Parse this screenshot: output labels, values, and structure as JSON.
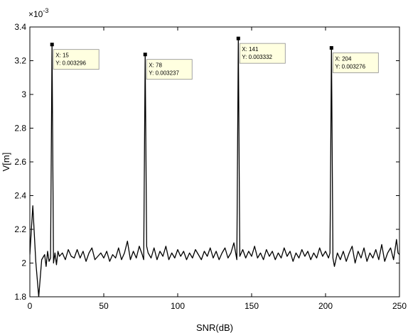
{
  "chart_data": {
    "type": "line",
    "xlabel": "SNR(dB)",
    "ylabel": "V[m]",
    "xlim": [
      0,
      250
    ],
    "ylim": [
      0.0018,
      0.0034
    ],
    "x_ticks": [
      "0",
      "50",
      "100",
      "150",
      "200",
      "250"
    ],
    "y_ticks": [
      "1.8",
      "2",
      "2.2",
      "2.4",
      "2.6",
      "2.8",
      "3",
      "3.2",
      "3.4"
    ],
    "y_multiplier": "×10",
    "y_multiplier_exp": "-3",
    "grid": false,
    "legend": "none",
    "line_color": "#000000",
    "tip_fill": "#ffffe0",
    "series": [
      {
        "points": [
          [
            0,
            0.00205
          ],
          [
            2,
            0.00234
          ],
          [
            4,
            0.00201
          ],
          [
            6,
            0.0018
          ],
          [
            8,
            0.00202
          ],
          [
            10,
            0.00205
          ],
          [
            11,
            0.00198
          ],
          [
            12,
            0.00207
          ],
          [
            13,
            0.00201
          ],
          [
            14,
            0.00203
          ],
          [
            15,
            0.003296
          ],
          [
            16,
            0.002
          ],
          [
            17,
            0.00206
          ],
          [
            18,
            0.00199
          ],
          [
            19,
            0.00207
          ],
          [
            20,
            0.00204
          ],
          [
            22,
            0.00206
          ],
          [
            24,
            0.00202
          ],
          [
            26,
            0.00208
          ],
          [
            28,
            0.00204
          ],
          [
            30,
            0.00203
          ],
          [
            32,
            0.00208
          ],
          [
            34,
            0.00203
          ],
          [
            36,
            0.00207
          ],
          [
            38,
            0.00201
          ],
          [
            40,
            0.00206
          ],
          [
            42,
            0.00209
          ],
          [
            44,
            0.00202
          ],
          [
            46,
            0.00204
          ],
          [
            48,
            0.00206
          ],
          [
            50,
            0.00203
          ],
          [
            52,
            0.00207
          ],
          [
            54,
            0.00201
          ],
          [
            56,
            0.00205
          ],
          [
            58,
            0.00203
          ],
          [
            60,
            0.00209
          ],
          [
            62,
            0.00202
          ],
          [
            64,
            0.00206
          ],
          [
            66,
            0.00213
          ],
          [
            68,
            0.00202
          ],
          [
            70,
            0.00207
          ],
          [
            72,
            0.00203
          ],
          [
            74,
            0.0021
          ],
          [
            76,
            0.00205
          ],
          [
            77,
            0.00202
          ],
          [
            78,
            0.003237
          ],
          [
            79,
            0.0021
          ],
          [
            80,
            0.00206
          ],
          [
            82,
            0.00203
          ],
          [
            84,
            0.00209
          ],
          [
            86,
            0.00202
          ],
          [
            88,
            0.00207
          ],
          [
            90,
            0.00204
          ],
          [
            92,
            0.0021
          ],
          [
            94,
            0.00202
          ],
          [
            96,
            0.00206
          ],
          [
            98,
            0.00203
          ],
          [
            100,
            0.00208
          ],
          [
            102,
            0.00204
          ],
          [
            104,
            0.00207
          ],
          [
            106,
            0.00202
          ],
          [
            108,
            0.00206
          ],
          [
            110,
            0.00203
          ],
          [
            112,
            0.00208
          ],
          [
            114,
            0.00205
          ],
          [
            116,
            0.00202
          ],
          [
            118,
            0.00207
          ],
          [
            120,
            0.00204
          ],
          [
            122,
            0.00209
          ],
          [
            124,
            0.00203
          ],
          [
            126,
            0.00207
          ],
          [
            128,
            0.00202
          ],
          [
            130,
            0.00206
          ],
          [
            132,
            0.00209
          ],
          [
            134,
            0.00203
          ],
          [
            136,
            0.00206
          ],
          [
            138,
            0.00212
          ],
          [
            140,
            0.00202
          ],
          [
            141,
            0.003332
          ],
          [
            142,
            0.00204
          ],
          [
            144,
            0.00208
          ],
          [
            146,
            0.00203
          ],
          [
            148,
            0.00207
          ],
          [
            150,
            0.00204
          ],
          [
            152,
            0.0021
          ],
          [
            154,
            0.00203
          ],
          [
            156,
            0.00206
          ],
          [
            158,
            0.00202
          ],
          [
            160,
            0.00208
          ],
          [
            162,
            0.00204
          ],
          [
            164,
            0.00207
          ],
          [
            166,
            0.00202
          ],
          [
            168,
            0.00206
          ],
          [
            170,
            0.00203
          ],
          [
            172,
            0.00209
          ],
          [
            174,
            0.00204
          ],
          [
            176,
            0.00207
          ],
          [
            178,
            0.00201
          ],
          [
            180,
            0.00206
          ],
          [
            182,
            0.00203
          ],
          [
            184,
            0.00208
          ],
          [
            186,
            0.00204
          ],
          [
            188,
            0.00207
          ],
          [
            190,
            0.00202
          ],
          [
            192,
            0.00206
          ],
          [
            194,
            0.00203
          ],
          [
            196,
            0.00209
          ],
          [
            198,
            0.00204
          ],
          [
            200,
            0.00207
          ],
          [
            202,
            0.00203
          ],
          [
            203,
            0.00206
          ],
          [
            204,
            0.003276
          ],
          [
            205,
            0.00203
          ],
          [
            206,
            0.00198
          ],
          [
            208,
            0.00206
          ],
          [
            210,
            0.00202
          ],
          [
            212,
            0.00207
          ],
          [
            214,
            0.00201
          ],
          [
            216,
            0.00206
          ],
          [
            218,
            0.0021
          ],
          [
            220,
            0.002
          ],
          [
            222,
            0.00207
          ],
          [
            224,
            0.00203
          ],
          [
            226,
            0.00209
          ],
          [
            228,
            0.00201
          ],
          [
            230,
            0.00206
          ],
          [
            232,
            0.00203
          ],
          [
            234,
            0.00208
          ],
          [
            236,
            0.00202
          ],
          [
            238,
            0.00211
          ],
          [
            240,
            0.00201
          ],
          [
            242,
            0.00206
          ],
          [
            244,
            0.00209
          ],
          [
            246,
            0.00202
          ],
          [
            248,
            0.00214
          ],
          [
            249,
            0.00206
          ],
          [
            250,
            0.00205
          ]
        ]
      }
    ],
    "annotations": [
      {
        "x": 15,
        "y": 0.003296,
        "x_text": "X: 15",
        "y_text": "Y: 0.003296"
      },
      {
        "x": 78,
        "y": 0.003237,
        "x_text": "X: 78",
        "y_text": "Y: 0.003237"
      },
      {
        "x": 141,
        "y": 0.003332,
        "x_text": "X: 141",
        "y_text": "Y: 0.003332"
      },
      {
        "x": 204,
        "y": 0.003276,
        "x_text": "X: 204",
        "y_text": "Y: 0.003276"
      }
    ]
  }
}
